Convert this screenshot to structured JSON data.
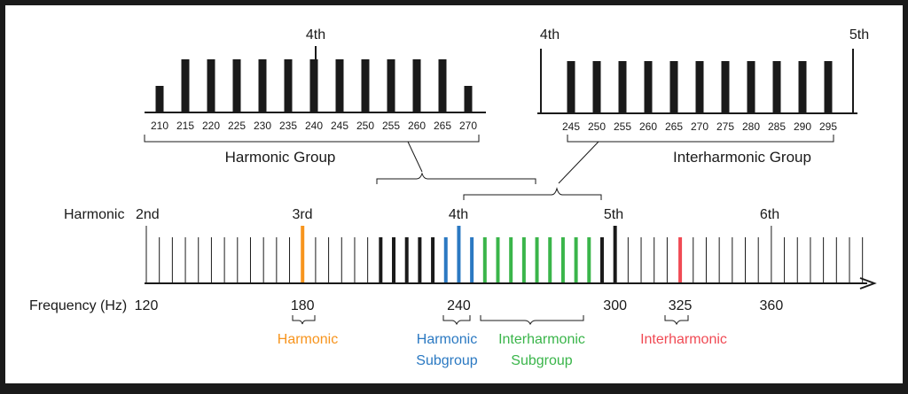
{
  "colors": {
    "frame": "#1a1a1a",
    "background": "#ffffff",
    "ink": "#1a1a1a",
    "harmonic": "#f7941d",
    "harmonic_subgroup": "#2b79c2",
    "interharmonic_subgroup": "#3ab54a",
    "interharmonic": "#f04a54"
  },
  "harmonic_group_panel": {
    "harmonic_marker": "4th",
    "frequencies": [
      "210",
      "215",
      "220",
      "225",
      "230",
      "235",
      "240",
      "245",
      "250",
      "255",
      "260",
      "265",
      "270"
    ],
    "label": "Harmonic Group"
  },
  "interharmonic_group_panel": {
    "left_marker": "4th",
    "right_marker": "5th",
    "frequencies": [
      "245",
      "250",
      "255",
      "260",
      "265",
      "270",
      "275",
      "280",
      "285",
      "290",
      "295"
    ],
    "label": "Interharmonic Group"
  },
  "spectrum": {
    "row_label": "Harmonic",
    "harmonics": [
      "2nd",
      "3rd",
      "4th",
      "5th",
      "6th"
    ],
    "axis_label": "Frequency (Hz)",
    "frequency_ticks": [
      "120",
      "180",
      "240",
      "300",
      "325",
      "360"
    ]
  },
  "legend": {
    "harmonic": "Harmonic",
    "harmonic_subgroup_line1": "Harmonic",
    "harmonic_subgroup_line2": "Subgroup",
    "interharmonic_subgroup_line1": "Interharmonic",
    "interharmonic_subgroup_line2": "Subgroup",
    "interharmonic": "Interharmonic"
  }
}
